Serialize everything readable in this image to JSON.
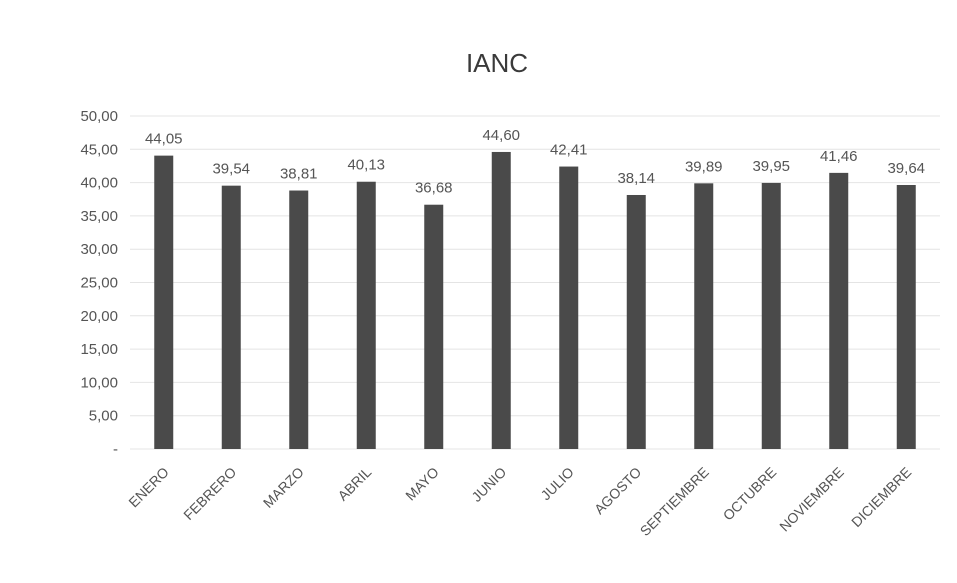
{
  "chart_data": {
    "type": "bar",
    "title": "IANC",
    "xlabel": "",
    "ylabel": "",
    "ylim": [
      0,
      50
    ],
    "y_ticks": [
      "-",
      "5,00",
      "10,00",
      "15,00",
      "20,00",
      "25,00",
      "30,00",
      "35,00",
      "40,00",
      "45,00",
      "50,00"
    ],
    "grid": true,
    "legend": "none",
    "categories": [
      "ENERO",
      "FEBRERO",
      "MARZO",
      "ABRIL",
      "MAYO",
      "JUNIO",
      "JULIO",
      "AGOSTO",
      "SEPTIEMBRE",
      "OCTUBRE",
      "NOVIEMBRE",
      "DICIEMBRE"
    ],
    "values": [
      44.05,
      39.54,
      38.81,
      40.13,
      36.68,
      44.6,
      42.41,
      38.14,
      39.89,
      39.95,
      41.46,
      39.64
    ],
    "data_labels": [
      "44,05",
      "39,54",
      "38,81",
      "40,13",
      "36,68",
      "44,60",
      "42,41",
      "38,14",
      "39,89",
      "39,95",
      "41,46",
      "39,64"
    ],
    "bar_color": "#4a4a4a",
    "grid_color": "#e4e4e4"
  }
}
